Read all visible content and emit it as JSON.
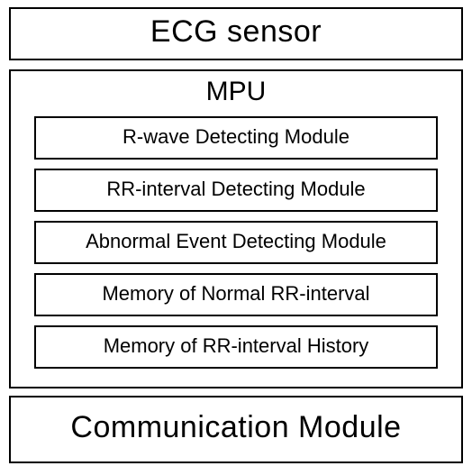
{
  "diagram": {
    "type": "block-diagram",
    "background_color": "#ffffff",
    "border_color": "#000000",
    "border_width": 2,
    "text_color": "#000000",
    "title_fontsize": 34,
    "mpu_title_fontsize": 30,
    "module_fontsize": 22,
    "top_block": {
      "label": "ECG sensor"
    },
    "mpu_block": {
      "title": "MPU",
      "modules": [
        {
          "label": "R-wave Detecting Module"
        },
        {
          "label": "RR-interval Detecting Module"
        },
        {
          "label": "Abnormal Event Detecting Module"
        },
        {
          "label": "Memory of Normal RR-interval"
        },
        {
          "label": "Memory of RR-interval History"
        }
      ]
    },
    "bottom_block": {
      "label": "Communication Module"
    }
  }
}
